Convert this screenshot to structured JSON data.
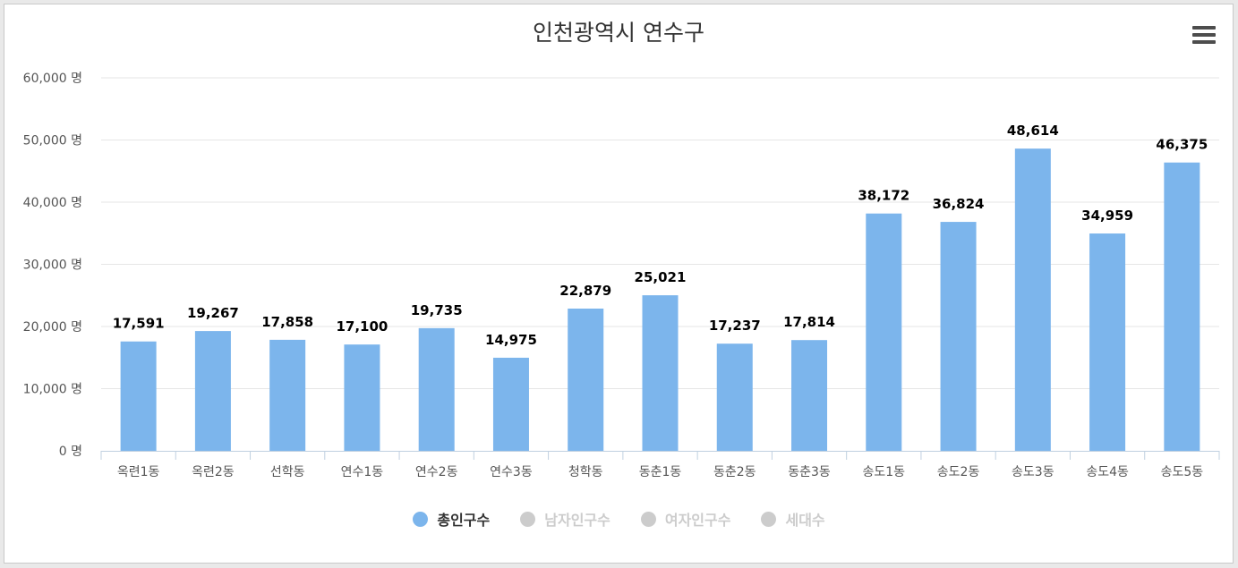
{
  "chart_data": {
    "type": "bar",
    "title": "인천광역시 연수구",
    "categories": [
      "옥련1동",
      "옥련2동",
      "선학동",
      "연수1동",
      "연수2동",
      "연수3동",
      "청학동",
      "동춘1동",
      "동춘2동",
      "동춘3동",
      "송도1동",
      "송도2동",
      "송도3동",
      "송도4동",
      "송도5동"
    ],
    "series": [
      {
        "name": "총인구수",
        "values": [
          17591,
          19267,
          17858,
          17100,
          19735,
          14975,
          22879,
          25021,
          17237,
          17814,
          38172,
          36824,
          48614,
          34959,
          46375
        ]
      }
    ],
    "data_labels": [
      "17,591",
      "19,267",
      "17,858",
      "17,100",
      "19,735",
      "14,975",
      "22,879",
      "25,021",
      "17,237",
      "17,814",
      "38,172",
      "36,824",
      "48,614",
      "34,959",
      "46,375"
    ],
    "yticks": [
      "0 명",
      "10,000 명",
      "20,000 명",
      "30,000 명",
      "40,000 명",
      "50,000 명",
      "60,000 명"
    ],
    "ylim": [
      0,
      60000
    ],
    "xlabel": "",
    "ylabel": "",
    "grid": true,
    "legend_position": "bottom-center",
    "bar_color": "#7cb5ec"
  },
  "legend": {
    "items": [
      {
        "label": "총인구수",
        "color": "#7cb5ec",
        "text_color": "#333333",
        "active": true
      },
      {
        "label": "남자인구수",
        "color": "#cccccc",
        "text_color": "#cccccc",
        "active": false
      },
      {
        "label": "여자인구수",
        "color": "#cccccc",
        "text_color": "#cccccc",
        "active": false
      },
      {
        "label": "세대수",
        "color": "#cccccc",
        "text_color": "#cccccc",
        "active": false
      }
    ]
  },
  "menu": {
    "icon": "hamburger-menu-icon"
  }
}
